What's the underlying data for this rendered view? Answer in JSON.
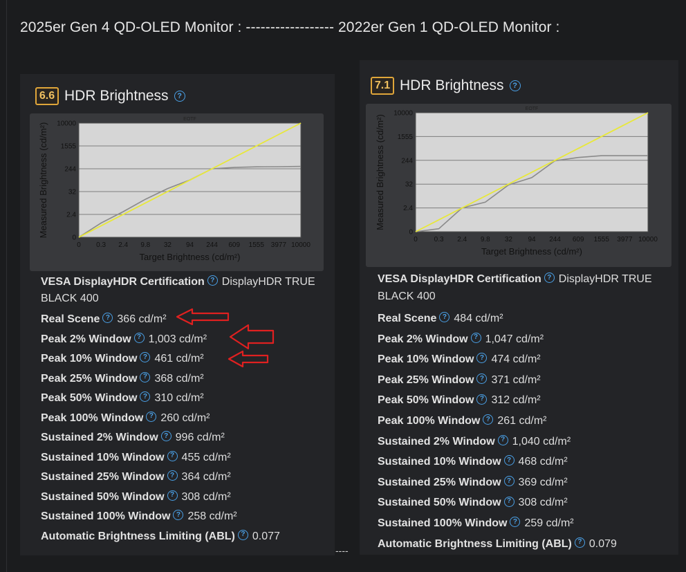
{
  "heading": "2025er Gen 4 QD-OLED Monitor : ------------------ 2022er Gen 1 QD-OLED Monitor :",
  "gap_text": "----",
  "colors": {
    "badge_border": "#e0a63a",
    "help_icon": "#4aa0e6",
    "ideal_line": "#e8e83a",
    "measured_line": "#8a8a8a",
    "annotation_arrow": "#e02020"
  },
  "panels": [
    {
      "score": "6.6",
      "title": "HDR Brightness",
      "chart_data": {
        "type": "line",
        "title": "EOTF",
        "xlabel": "Target Brightness (cd/m²)",
        "ylabel": "Measured Brightness (cd/m²)",
        "x_ticks": [
          "0",
          "0.3",
          "2.4",
          "9.8",
          "32",
          "94",
          "244",
          "609",
          "1555",
          "3977",
          "10000"
        ],
        "y_ticks": [
          "0",
          "2.4",
          "32",
          "244",
          "1555",
          "10000"
        ],
        "series": [
          {
            "style": "ideal",
            "x": [
              0,
              10000
            ],
            "y": [
              0,
              10000
            ]
          },
          {
            "style": "measured",
            "x": [
              0,
              0.3,
              2.4,
              9.8,
              32,
              94,
              244,
              609,
              1555,
              3977,
              10000
            ],
            "y": [
              0,
              1.5,
              6,
              22,
              60,
              140,
              244,
              320,
              355,
              365,
              380
            ]
          }
        ]
      },
      "metrics": [
        {
          "label": "VESA DisplayHDR Certification",
          "value": "DisplayHDR TRUE BLACK 400"
        },
        {
          "label": "Real Scene",
          "value": "366 cd/m²"
        },
        {
          "label": "Peak 2% Window",
          "value": "1,003 cd/m²"
        },
        {
          "label": "Peak 10% Window",
          "value": "461 cd/m²"
        },
        {
          "label": "Peak 25% Window",
          "value": "368 cd/m²"
        },
        {
          "label": "Peak 50% Window",
          "value": "310 cd/m²"
        },
        {
          "label": "Peak 100% Window",
          "value": "260 cd/m²"
        },
        {
          "label": "Sustained 2% Window",
          "value": "996 cd/m²"
        },
        {
          "label": "Sustained 10% Window",
          "value": "455 cd/m²"
        },
        {
          "label": "Sustained 25% Window",
          "value": "364 cd/m²"
        },
        {
          "label": "Sustained 50% Window",
          "value": "308 cd/m²"
        },
        {
          "label": "Sustained 100% Window",
          "value": "258 cd/m²"
        },
        {
          "label": "Automatic Brightness Limiting (ABL)",
          "value": "0.077"
        }
      ]
    },
    {
      "score": "7.1",
      "title": "HDR Brightness",
      "chart_data": {
        "type": "line",
        "title": "EOTF",
        "xlabel": "Target Brightness (cd/m²)",
        "ylabel": "Measured Brightness (cd/m²)",
        "x_ticks": [
          "0",
          "0.3",
          "2.4",
          "9.8",
          "32",
          "94",
          "244",
          "609",
          "1555",
          "3977",
          "10000"
        ],
        "y_ticks": [
          "0",
          "2.4",
          "32",
          "244",
          "1555",
          "10000"
        ],
        "series": [
          {
            "style": "ideal",
            "x": [
              0,
              10000
            ],
            "y": [
              0,
              10000
            ]
          },
          {
            "style": "measured",
            "x": [
              0,
              0.3,
              2.4,
              9.8,
              32,
              94,
              244,
              609,
              1555,
              3977,
              10000
            ],
            "y": [
              0,
              0.3,
              2.4,
              9.5,
              31,
              90,
              240,
              400,
              500,
              500,
              500
            ]
          }
        ]
      },
      "metrics": [
        {
          "label": "VESA DisplayHDR Certification",
          "value": "DisplayHDR TRUE BLACK 400"
        },
        {
          "label": "Real Scene",
          "value": "484 cd/m²"
        },
        {
          "label": "Peak 2% Window",
          "value": "1,047 cd/m²"
        },
        {
          "label": "Peak 10% Window",
          "value": "474 cd/m²"
        },
        {
          "label": "Peak 25% Window",
          "value": "371 cd/m²"
        },
        {
          "label": "Peak 50% Window",
          "value": "312 cd/m²"
        },
        {
          "label": "Peak 100% Window",
          "value": "261 cd/m²"
        },
        {
          "label": "Sustained 2% Window",
          "value": "1,040 cd/m²"
        },
        {
          "label": "Sustained 10% Window",
          "value": "468 cd/m²"
        },
        {
          "label": "Sustained 25% Window",
          "value": "369 cd/m²"
        },
        {
          "label": "Sustained 50% Window",
          "value": "308 cd/m²"
        },
        {
          "label": "Sustained 100% Window",
          "value": "259 cd/m²"
        },
        {
          "label": "Automatic Brightness Limiting (ABL)",
          "value": "0.079"
        }
      ]
    }
  ]
}
